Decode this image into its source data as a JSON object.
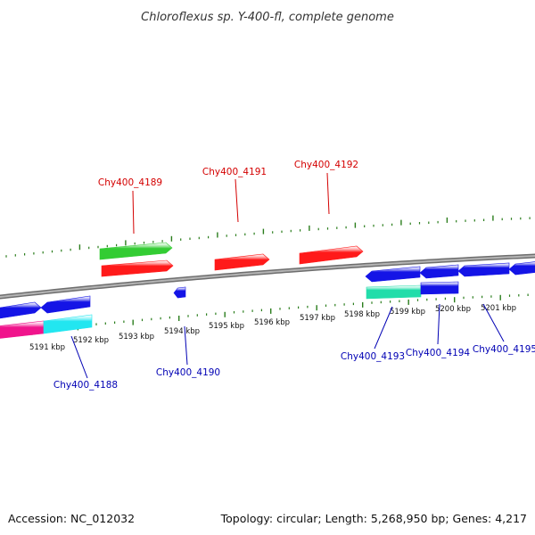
{
  "title": "Chloroflexus sp. Y-400-fl, complete genome",
  "footer": {
    "accession": "Accession: NC_012032",
    "summary": "Topology: circular; Length: 5,268,950 bp; Genes: 4,217"
  },
  "colors": {
    "backbone": "#8c8c8c",
    "tick": "#2a7d1c",
    "label_top": "#d40000",
    "label_bottom": "#0000b4",
    "gene_red": "#ff1a1a",
    "gene_green": "#33cc33",
    "gene_blue": "#1414e6",
    "gene_teal": "#22ddaa",
    "gene_cyan": "#22e6f0",
    "gene_magenta": "#f0148c"
  },
  "scale_labels": [
    "5191 kbp",
    "5192 kbp",
    "5193 kbp",
    "5194 kbp",
    "5195 kbp",
    "5196 kbp",
    "5197 kbp",
    "5198 kbp",
    "5199 kbp",
    "5200 kbp",
    "5201 kbp"
  ],
  "gene_labels": [
    {
      "text": "Chy400_4189",
      "side": "top"
    },
    {
      "text": "Chy400_4191",
      "side": "top"
    },
    {
      "text": "Chy400_4192",
      "side": "top"
    },
    {
      "text": "Chy400_4188",
      "side": "bottom"
    },
    {
      "text": "Chy400_4190",
      "side": "bottom"
    },
    {
      "text": "Chy400_4193",
      "side": "bottom"
    },
    {
      "text": "Chy400_4194",
      "side": "bottom"
    },
    {
      "text": "Chy400_4195",
      "side": "bottom"
    }
  ],
  "genes": [
    {
      "name": "gene-green-top",
      "color": "gene_green",
      "strand": "forward"
    },
    {
      "name": "gene-red-1",
      "color": "gene_red",
      "strand": "forward"
    },
    {
      "name": "gene-red-2",
      "color": "gene_red",
      "strand": "forward"
    },
    {
      "name": "gene-red-3",
      "color": "gene_red",
      "strand": "forward"
    },
    {
      "name": "gene-blue-small",
      "color": "gene_blue",
      "strand": "reverse"
    },
    {
      "name": "gene-blue-left-1",
      "color": "gene_blue",
      "strand": "forward"
    },
    {
      "name": "gene-blue-left-2",
      "color": "gene_blue",
      "strand": "reverse"
    },
    {
      "name": "gene-blue-right-1",
      "color": "gene_blue",
      "strand": "reverse"
    },
    {
      "name": "gene-blue-right-2",
      "color": "gene_blue",
      "strand": "reverse"
    },
    {
      "name": "gene-blue-right-3",
      "color": "gene_blue",
      "strand": "reverse"
    },
    {
      "name": "gene-blue-right-4",
      "color": "gene_blue",
      "strand": "reverse"
    },
    {
      "name": "gene-magenta",
      "color": "gene_magenta",
      "strand": "none"
    },
    {
      "name": "gene-cyan",
      "color": "gene_cyan",
      "strand": "none"
    },
    {
      "name": "gene-teal",
      "color": "gene_teal",
      "strand": "none"
    },
    {
      "name": "gene-blue-rect",
      "color": "gene_blue",
      "strand": "none"
    }
  ]
}
